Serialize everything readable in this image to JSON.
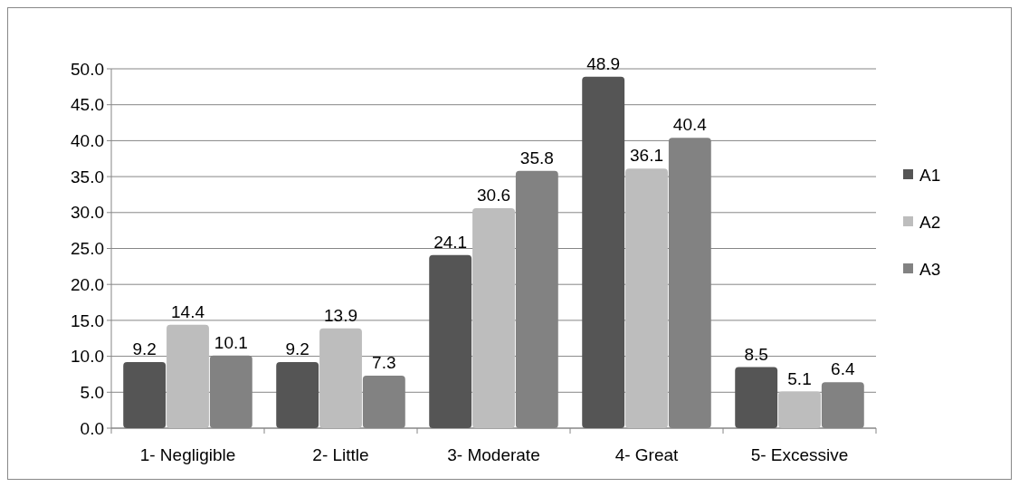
{
  "chart_data": {
    "type": "bar",
    "categories": [
      "1- Negligible",
      "2- Little",
      "3- Moderate",
      "4- Great",
      "5- Excessive"
    ],
    "series": [
      {
        "name": "A1",
        "color": "#555555",
        "values": [
          9.2,
          9.2,
          24.1,
          48.9,
          8.5
        ]
      },
      {
        "name": "A2",
        "color": "#bdbdbd",
        "values": [
          14.4,
          13.9,
          30.6,
          36.1,
          5.1
        ]
      },
      {
        "name": "A3",
        "color": "#828282",
        "values": [
          10.1,
          7.3,
          35.8,
          40.4,
          6.4
        ]
      }
    ],
    "ylim": [
      0,
      50
    ],
    "yticks": [
      {
        "value": 0,
        "label": "0.0"
      },
      {
        "value": 5,
        "label": "5.0"
      },
      {
        "value": 10,
        "label": "10.0"
      },
      {
        "value": 15,
        "label": "15.0"
      },
      {
        "value": 20,
        "label": "20.0"
      },
      {
        "value": 25,
        "label": "25.0"
      },
      {
        "value": 30,
        "label": "30.0"
      },
      {
        "value": 35,
        "label": "35.0"
      },
      {
        "value": 40,
        "label": "40.0"
      },
      {
        "value": 45,
        "label": "45.0"
      },
      {
        "value": 50,
        "label": "50.0"
      }
    ],
    "grid": "y",
    "legend": "right",
    "data_labels": true
  }
}
